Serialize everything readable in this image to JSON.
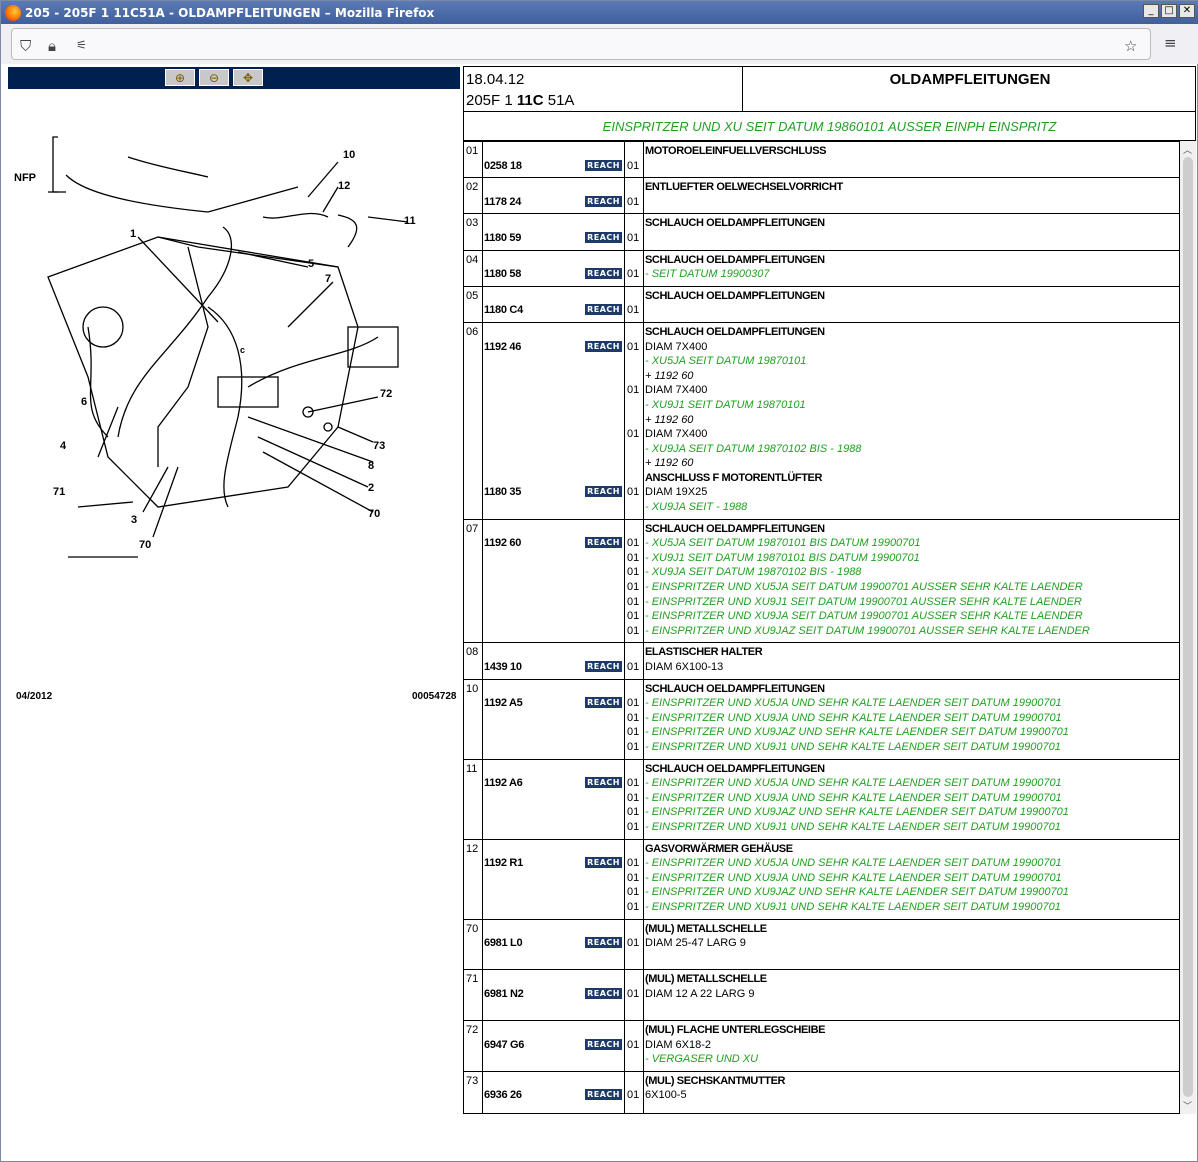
{
  "window": {
    "title": "205 - 205F 1 11C51A - OLDAMPFLEITUNGEN – Mozilla Firefox",
    "buttons": [
      "_",
      "□",
      "✕"
    ]
  },
  "navbar": {
    "icons": [
      "shield-icon",
      "lock-icon",
      "permissions-icon",
      "bookmark-star-icon",
      "menu-icon"
    ]
  },
  "diagram": {
    "toolbar": [
      "zoom-in-icon",
      "zoom-out-icon",
      "zoom-pan-icon"
    ],
    "callouts": [
      "NFP",
      "10",
      "12",
      "11",
      "1",
      "5",
      "7",
      "6",
      "72",
      "4",
      "73",
      "8",
      "71",
      "2",
      "3",
      "70",
      "70",
      "c"
    ],
    "date": "04/2012",
    "code": "00054728"
  },
  "header": {
    "date": "18.04.12",
    "code_a": "205F 1 ",
    "code_b": "11C",
    "code_c": " 51A",
    "title": "OLDAMPFLEITUNGEN",
    "subtitle": "EINSPRITZER UND XU SEIT DATUM 19860101 AUSSER EINPH EINSPRITZ"
  },
  "colors": {
    "accent": "#00204f",
    "green": "#22a022",
    "reach": "#1e3a6a"
  },
  "reach_label": "REACH",
  "rows": [
    {
      "num": "01",
      "lines": [
        {
          "t": "MOTOROELEINFUELLVERSCHLUSS",
          "s": "bold"
        },
        {
          "part": "0258 18",
          "q": "01",
          "t": ""
        }
      ]
    },
    {
      "num": "02",
      "lines": [
        {
          "t": "ENTLUEFTER OELWECHSELVORRICHT",
          "s": "bold"
        },
        {
          "part": "1178 24",
          "q": "01",
          "t": ""
        }
      ]
    },
    {
      "num": "03",
      "lines": [
        {
          "t": "SCHLAUCH OELDAMPFLEITUNGEN",
          "s": "bold"
        },
        {
          "part": "1180 59",
          "q": "01",
          "t": ""
        }
      ]
    },
    {
      "num": "04",
      "lines": [
        {
          "t": "SCHLAUCH OELDAMPFLEITUNGEN",
          "s": "bold"
        },
        {
          "part": "1180 58",
          "q": "01",
          "t": "- SEIT DATUM 19900307",
          "s": "green"
        }
      ]
    },
    {
      "num": "05",
      "lines": [
        {
          "t": "SCHLAUCH OELDAMPFLEITUNGEN",
          "s": "bold"
        },
        {
          "part": "1180 C4",
          "q": "01",
          "t": ""
        }
      ]
    },
    {
      "num": "06",
      "lines": [
        {
          "t": "SCHLAUCH OELDAMPFLEITUNGEN",
          "s": "bold"
        },
        {
          "part": "1192 46",
          "q": "01",
          "t": "DIAM 7X400"
        },
        {
          "t": "- XU5JA SEIT DATUM 19870101",
          "s": "green"
        },
        {
          "t": "+ 1192 60",
          "s": "ital"
        },
        {
          "q": "01",
          "t": "DIAM 7X400"
        },
        {
          "t": "- XU9J1 SEIT DATUM 19870101",
          "s": "green"
        },
        {
          "t": "+ 1192 60",
          "s": "ital"
        },
        {
          "q": "01",
          "t": "DIAM 7X400"
        },
        {
          "t": "- XU9JA SEIT DATUM 19870102 BIS - 1988",
          "s": "green"
        },
        {
          "t": "+ 1192 60",
          "s": "ital"
        },
        {
          "t": "ANSCHLUSS F MOTORENTLÜFTER",
          "s": "bold"
        },
        {
          "part": "1180 35",
          "q": "01",
          "t": "DIAM 19X25"
        },
        {
          "t": "- XU9JA SEIT - 1988",
          "s": "green"
        }
      ]
    },
    {
      "num": "07",
      "lines": [
        {
          "t": "SCHLAUCH OELDAMPFLEITUNGEN",
          "s": "bold"
        },
        {
          "part": "1192 60",
          "q": "01",
          "t": "- XU5JA SEIT DATUM 19870101 BIS DATUM 19900701",
          "s": "green"
        },
        {
          "q": "01",
          "t": "- XU9J1 SEIT DATUM 19870101 BIS DATUM 19900701",
          "s": "green"
        },
        {
          "q": "01",
          "t": "- XU9JA SEIT DATUM 19870102 BIS - 1988",
          "s": "green"
        },
        {
          "q": "01",
          "t": "- EINSPRITZER UND XU5JA SEIT DATUM 19900701 AUSSER SEHR KALTE LAENDER",
          "s": "green"
        },
        {
          "q": "01",
          "t": "- EINSPRITZER UND XU9J1 SEIT DATUM 19900701 AUSSER SEHR KALTE LAENDER",
          "s": "green"
        },
        {
          "q": "01",
          "t": "- EINSPRITZER UND XU9JA SEIT DATUM 19900701 AUSSER SEHR KALTE LAENDER",
          "s": "green"
        },
        {
          "q": "01",
          "t": "- EINSPRITZER UND XU9JAZ SEIT DATUM 19900701 AUSSER SEHR KALTE LAENDER",
          "s": "green"
        }
      ]
    },
    {
      "num": "08",
      "lines": [
        {
          "t": "ELASTISCHER HALTER",
          "s": "bold"
        },
        {
          "part": "1439 10",
          "q": "01",
          "t": "DIAM 6X100-13"
        }
      ]
    },
    {
      "num": "10",
      "lines": [
        {
          "t": "SCHLAUCH OELDAMPFLEITUNGEN",
          "s": "bold"
        },
        {
          "part": "1192 A5",
          "q": "01",
          "t": "- EINSPRITZER UND XU5JA UND SEHR KALTE LAENDER SEIT DATUM 19900701",
          "s": "green"
        },
        {
          "q": "01",
          "t": "- EINSPRITZER UND XU9JA UND SEHR KALTE LAENDER SEIT DATUM 19900701",
          "s": "green"
        },
        {
          "q": "01",
          "t": "- EINSPRITZER UND XU9JAZ UND SEHR KALTE LAENDER SEIT DATUM 19900701",
          "s": "green"
        },
        {
          "q": "01",
          "t": "- EINSPRITZER UND XU9J1 UND SEHR KALTE LAENDER SEIT DATUM 19900701",
          "s": "green"
        }
      ]
    },
    {
      "num": "11",
      "lines": [
        {
          "t": "SCHLAUCH OELDAMPFLEITUNGEN",
          "s": "bold"
        },
        {
          "part": "1192 A6",
          "q": "01",
          "t": "- EINSPRITZER UND XU5JA UND SEHR KALTE LAENDER SEIT DATUM 19900701",
          "s": "green"
        },
        {
          "q": "01",
          "t": "- EINSPRITZER UND XU9JA UND SEHR KALTE LAENDER SEIT DATUM 19900701",
          "s": "green"
        },
        {
          "q": "01",
          "t": "- EINSPRITZER UND XU9JAZ UND SEHR KALTE LAENDER SEIT DATUM 19900701",
          "s": "green"
        },
        {
          "q": "01",
          "t": "- EINSPRITZER UND XU9J1 UND SEHR KALTE LAENDER SEIT DATUM 19900701",
          "s": "green"
        }
      ]
    },
    {
      "num": "12",
      "lines": [
        {
          "t": "GASVORWÄRMER GEHÄUSE",
          "s": "bold"
        },
        {
          "part": "1192 R1",
          "q": "01",
          "t": "- EINSPRITZER UND XU5JA UND SEHR KALTE LAENDER SEIT DATUM 19900701",
          "s": "green"
        },
        {
          "q": "01",
          "t": "- EINSPRITZER UND XU9JA UND SEHR KALTE LAENDER SEIT DATUM 19900701",
          "s": "green"
        },
        {
          "q": "01",
          "t": "- EINSPRITZER UND XU9JAZ UND SEHR KALTE LAENDER SEIT DATUM 19900701",
          "s": "green"
        },
        {
          "q": "01",
          "t": "- EINSPRITZER UND XU9J1 UND SEHR KALTE LAENDER SEIT DATUM 19900701",
          "s": "green"
        }
      ]
    },
    {
      "num": "70",
      "lines": [
        {
          "t": "(MUL) METALLSCHELLE",
          "s": "bold"
        },
        {
          "part": "6981 L0",
          "q": "01",
          "t": "DIAM 25-47 LARG 9"
        },
        {
          "t": ""
        }
      ]
    },
    {
      "num": "71",
      "lines": [
        {
          "t": "(MUL) METALLSCHELLE",
          "s": "bold"
        },
        {
          "part": "6981 N2",
          "q": "01",
          "t": "DIAM 12 A 22 LARG 9"
        },
        {
          "t": ""
        }
      ]
    },
    {
      "num": "72",
      "lines": [
        {
          "t": "(MUL) FLACHE UNTERLEGSCHEIBE",
          "s": "bold"
        },
        {
          "part": "6947 G6",
          "q": "01",
          "t": "DIAM 6X18-2"
        },
        {
          "t": "- VERGASER UND XU",
          "s": "green"
        }
      ]
    },
    {
      "num": "73",
      "lines": [
        {
          "t": "(MUL) SECHSKANTMUTTER",
          "s": "bold"
        },
        {
          "part": "6936 26",
          "q": "01",
          "t": "6X100-5"
        },
        {
          "t": ""
        }
      ]
    }
  ]
}
